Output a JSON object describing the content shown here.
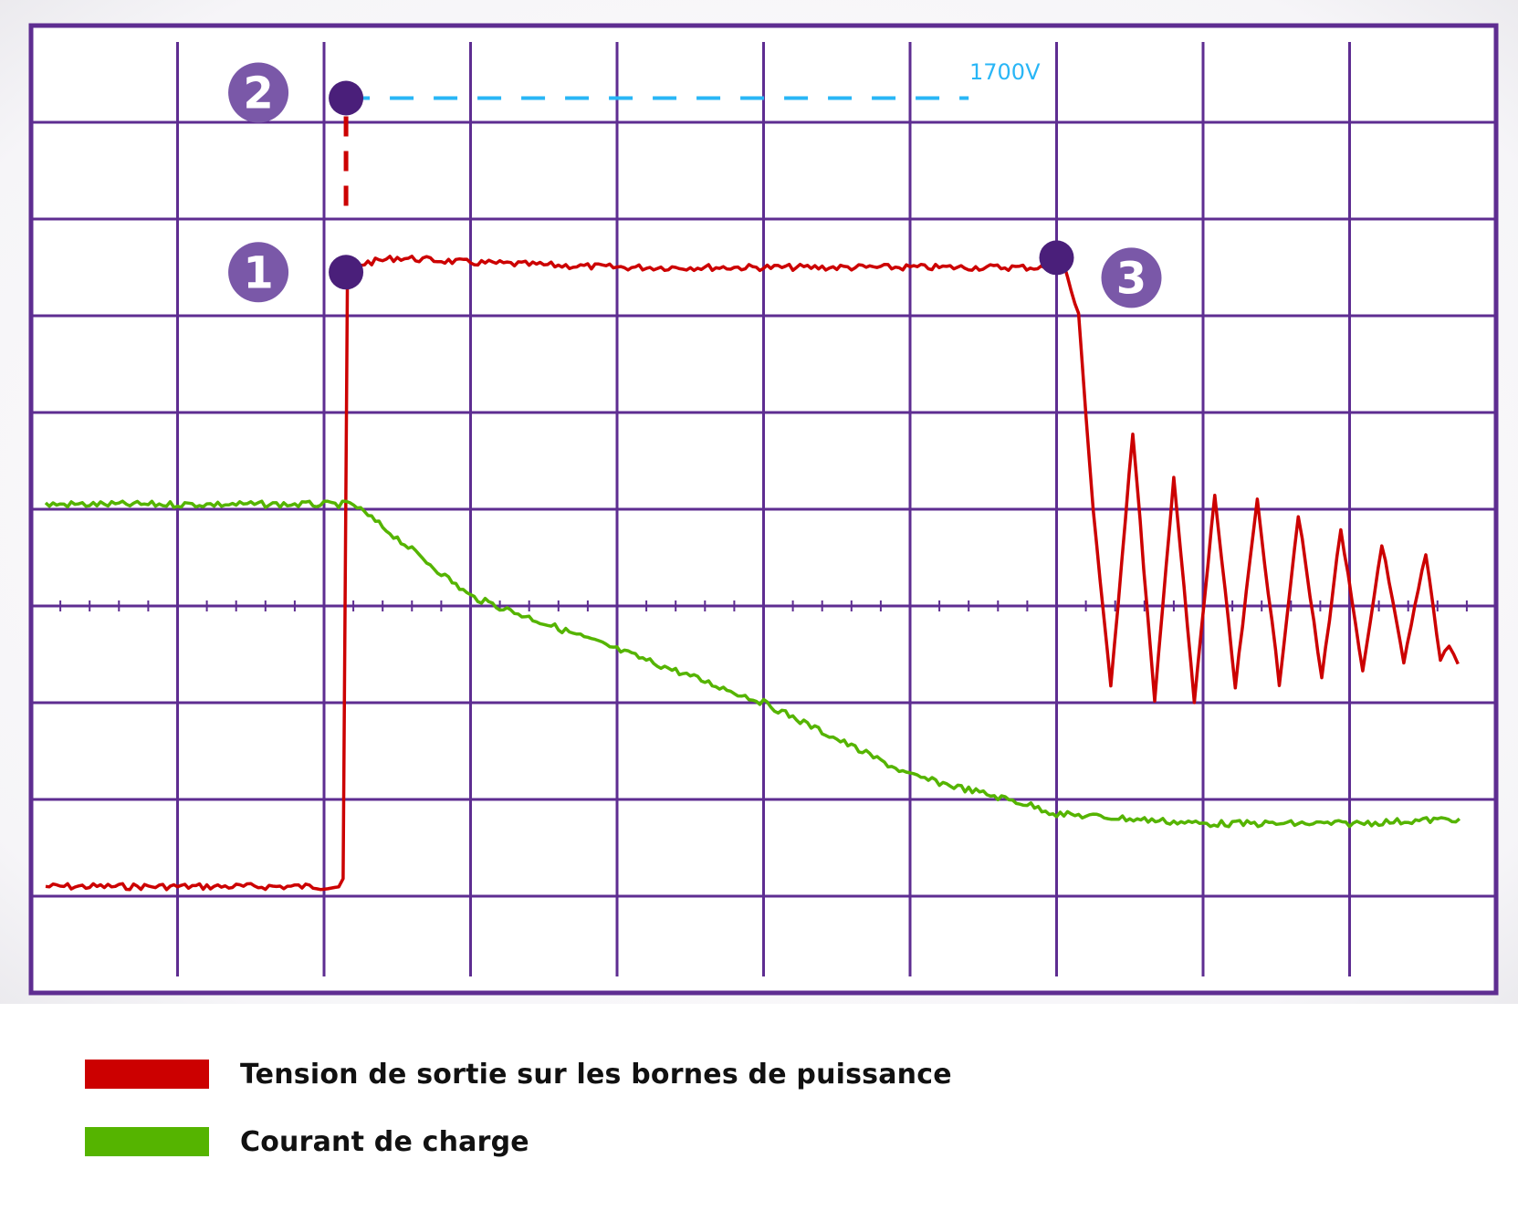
{
  "chart_data": {
    "type": "line",
    "title": "",
    "xlabel": "",
    "ylabel": "",
    "grid": true,
    "grid_divisions": {
      "x": 10,
      "y": 10
    },
    "xlim": [
      0,
      10
    ],
    "ylim": [
      -4,
      6
    ],
    "legend_position": "bottom-left",
    "series": [
      {
        "name": "Tension de sortie sur les bornes de puissance",
        "color": "#cc0000",
        "x": [
          0.1,
          2.1,
          2.13,
          2.16,
          2.3,
          2.5,
          3.0,
          4.0,
          5.0,
          6.0,
          6.97,
          7.05,
          7.15,
          7.25,
          7.37,
          7.52,
          7.67,
          7.8,
          7.94,
          8.08,
          8.22,
          8.37,
          8.52,
          8.65,
          8.81,
          8.94,
          9.09,
          9.22,
          9.37,
          9.52,
          9.62,
          9.68,
          9.74
        ],
        "y": [
          -2.9,
          -2.9,
          -2.85,
          3.5,
          3.55,
          3.6,
          3.55,
          3.5,
          3.5,
          3.5,
          3.5,
          3.52,
          3.0,
          1.0,
          -0.85,
          1.8,
          -1.0,
          1.35,
          -1.0,
          1.15,
          -0.85,
          1.1,
          -0.8,
          0.95,
          -0.75,
          0.8,
          -0.7,
          0.65,
          -0.6,
          0.55,
          -0.55,
          -0.4,
          -0.6
        ]
      },
      {
        "name": "Courant de charge",
        "color": "#55b400",
        "x": [
          0.1,
          1.0,
          2.0,
          2.2,
          2.5,
          3.0,
          4.0,
          5.0,
          6.0,
          6.8,
          7.0,
          8.0,
          9.0,
          9.75
        ],
        "y": [
          1.05,
          1.05,
          1.05,
          1.05,
          0.7,
          0.1,
          -0.45,
          -1.0,
          -1.75,
          -2.05,
          -2.15,
          -2.25,
          -2.25,
          -2.2
        ]
      },
      {
        "name": "",
        "color": "#29b6f6",
        "style": "dashed",
        "x": [
          2.15,
          6.4
        ],
        "y": [
          5.25,
          5.25
        ]
      }
    ],
    "annotations": [
      {
        "label": "1",
        "x": 2.15,
        "y": 3.45,
        "target": "Tension de sortie sur les bornes de puissance"
      },
      {
        "label": "2",
        "x": 2.15,
        "y": 5.25,
        "target": "1700V"
      },
      {
        "label": "3",
        "x": 7.0,
        "y": 3.6,
        "target": "Tension de sortie sur les bornes de puissance"
      }
    ],
    "reference_label": "1700V"
  },
  "colors": {
    "grid": "#5e2d91",
    "marker": "#4a1f7a",
    "badge": "#7a58a8",
    "reference": "#29b6f6"
  }
}
